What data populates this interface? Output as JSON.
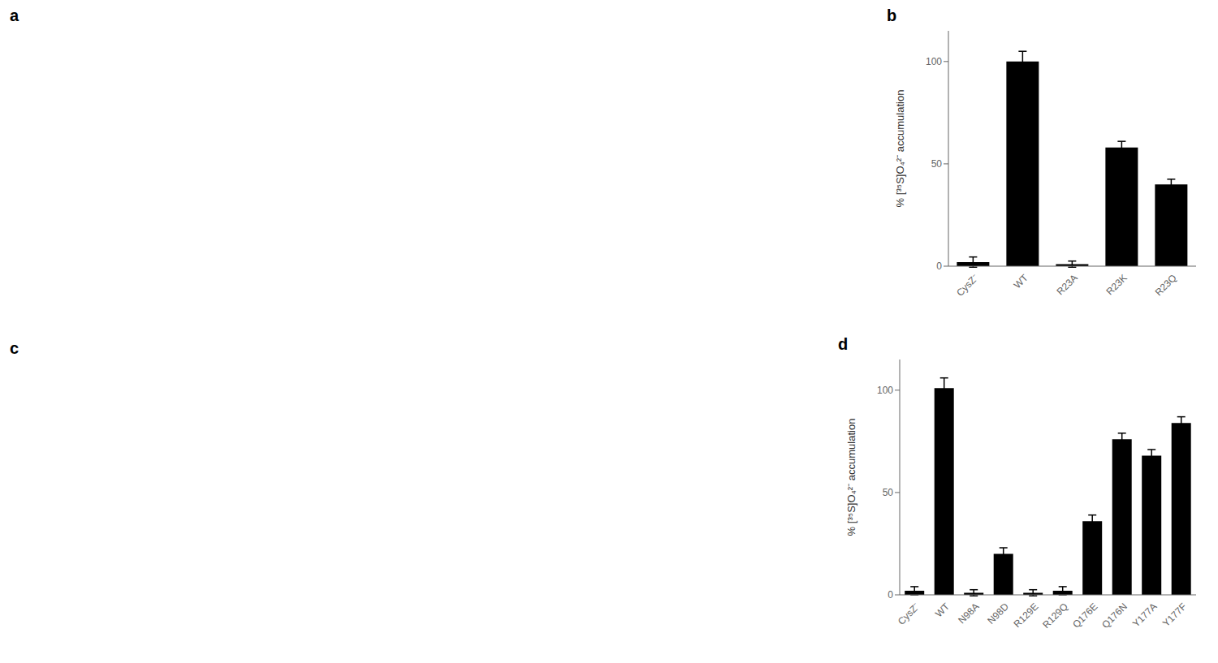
{
  "chart_data": [
    {
      "type": "bar",
      "annotations": [
        "b"
      ],
      "categories": [
        "CysZ⁻",
        "WT",
        "R23A",
        "R23K",
        "R23Q"
      ],
      "values": [
        2,
        100,
        1,
        58,
        40
      ],
      "errors": [
        2.5,
        5,
        1.5,
        3,
        2.5
      ],
      "ylabel": "% [³⁵S]O₄²⁻ accumulation",
      "ylim": [
        0,
        115
      ],
      "yticks": [
        0,
        50,
        100
      ],
      "color": "#000000"
    },
    {
      "type": "bar",
      "annotations": [
        "d"
      ],
      "categories": [
        "CysZ⁻",
        "WT",
        "N98A",
        "N98D",
        "R129E",
        "R129Q",
        "Q176E",
        "Q176N",
        "Y177A",
        "Y177F"
      ],
      "values": [
        2,
        101,
        1,
        20,
        1,
        2,
        36,
        76,
        68,
        84
      ],
      "errors": [
        2,
        5,
        1.5,
        3,
        1.5,
        2,
        3,
        3,
        3,
        3
      ],
      "ylabel": "% [³⁵S]O₄²⁻ accumulation",
      "ylim": [
        0,
        115
      ],
      "yticks": [
        0,
        50,
        100
      ],
      "color": "#000000"
    }
  ],
  "annotations": [
    "a",
    "c"
  ]
}
